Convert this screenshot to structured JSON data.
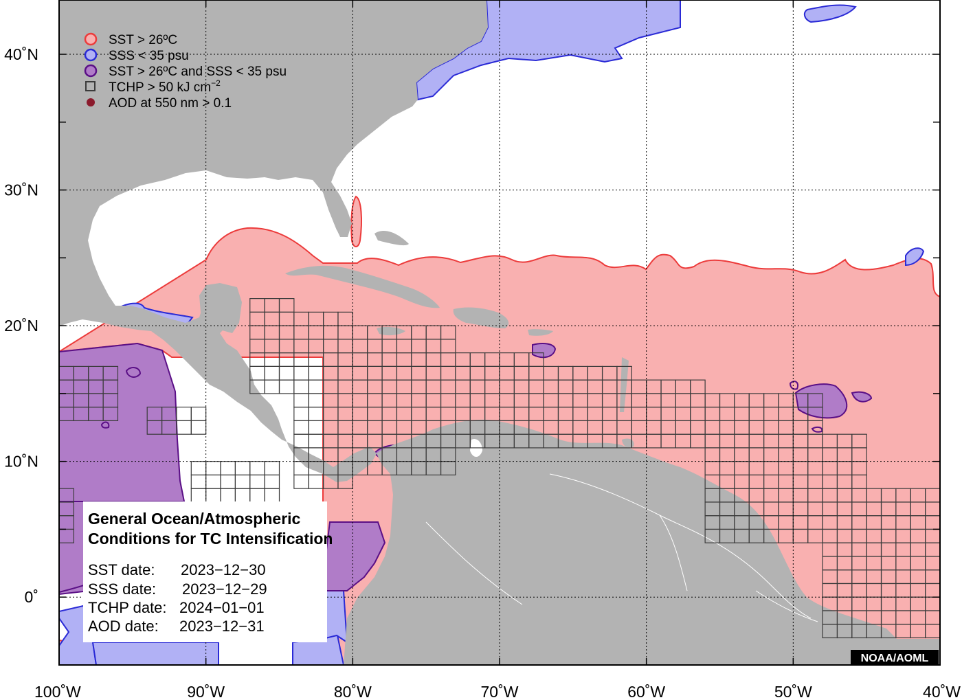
{
  "map": {
    "lon_range": [
      -100,
      -40
    ],
    "lat_range": [
      -5,
      44
    ],
    "grid": true,
    "colors": {
      "ocean": "#ffffff",
      "land": "#b3b3b3",
      "sst": "#f9b0b0",
      "sst_line": "#ec3b3b",
      "sss": "#b1b1f5",
      "sss_line": "#2a2ad6",
      "both": "#b07cc8",
      "both_line": "#5a0f86",
      "tchp_line": "#3b3b3b",
      "aod": "#8b1a2c"
    },
    "lon_ticks": [
      {
        "value": -100,
        "label": "100˚W"
      },
      {
        "value": -90,
        "label": "90˚W"
      },
      {
        "value": -80,
        "label": "80˚W"
      },
      {
        "value": -70,
        "label": "70˚W"
      },
      {
        "value": -60,
        "label": "60˚W"
      },
      {
        "value": -50,
        "label": "50˚W"
      },
      {
        "value": -40,
        "label": "40˚W"
      }
    ],
    "lat_ticks": [
      {
        "value": 0,
        "label": "0˚"
      },
      {
        "value": 10,
        "label": "10˚N"
      },
      {
        "value": 20,
        "label": "20˚N"
      },
      {
        "value": 30,
        "label": "30˚N"
      },
      {
        "value": 40,
        "label": "40˚N"
      }
    ]
  },
  "legend": {
    "items": [
      {
        "label": "SST > 26ºC",
        "symbol": "circle-sst"
      },
      {
        "label": "SSS < 35 psu",
        "symbol": "circle-sss"
      },
      {
        "label": "SST > 26ºC and SSS < 35 psu",
        "symbol": "circle-both"
      },
      {
        "label": "TCHP > 50 kJ cm",
        "superscript": "−2",
        "symbol": "square-tchp"
      },
      {
        "label": "AOD at 550 nm > 0.1",
        "symbol": "dot-aod"
      }
    ]
  },
  "info_box": {
    "title_line1": "General Ocean/Atmospheric",
    "title_line2": "Conditions for TC Intensification",
    "rows": [
      {
        "label": "SST date:",
        "value": "2023−12−30"
      },
      {
        "label": "SSS date:",
        "value": "2023−12−29"
      },
      {
        "label": "TCHP date:",
        "value": "2024−01−01"
      },
      {
        "label": "AOD date:",
        "value": "2023−12−31"
      }
    ]
  },
  "credit": "NOAA/AOML"
}
